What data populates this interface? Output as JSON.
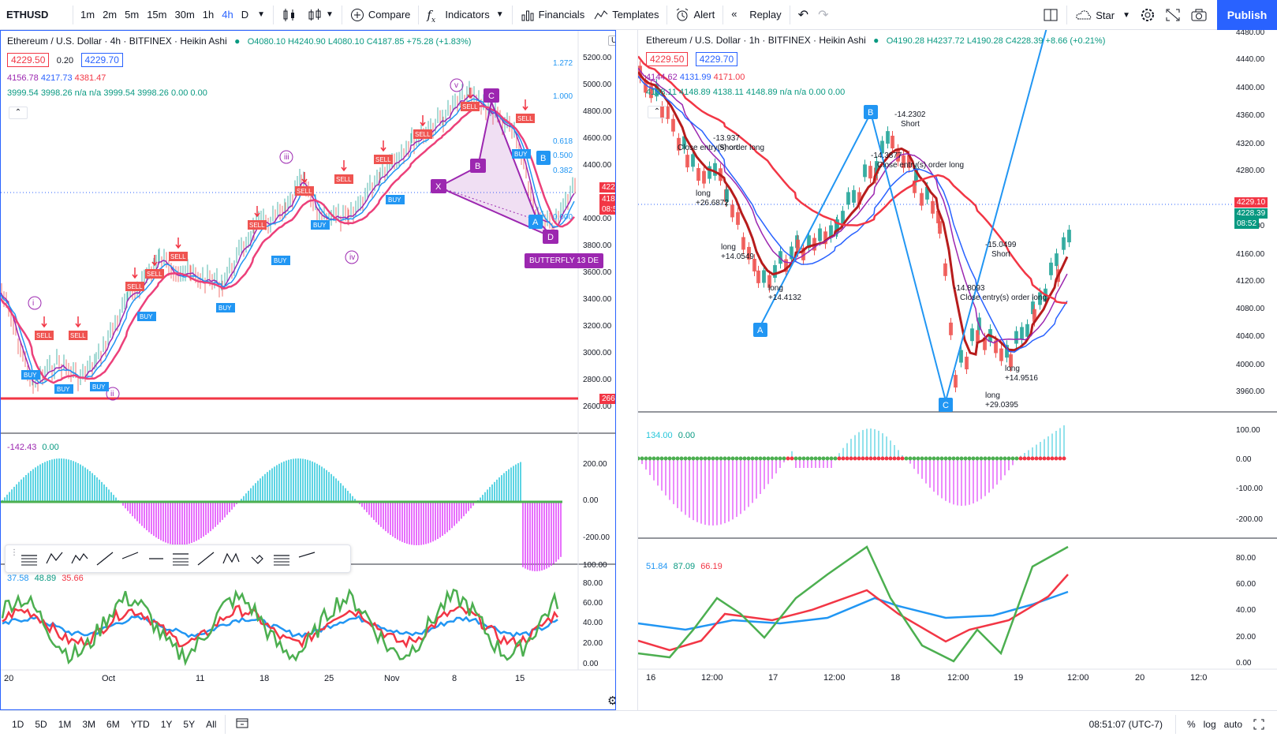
{
  "toolbar": {
    "symbol": "ETHUSD",
    "intervals": [
      "1m",
      "2m",
      "5m",
      "15m",
      "30m",
      "1h",
      "4h",
      "D"
    ],
    "active_interval": "4h",
    "compare": "Compare",
    "indicators": "Indicators",
    "financials": "Financials",
    "templates": "Templates",
    "alert": "Alert",
    "replay": "Replay",
    "star": "Star",
    "publish": "Publish"
  },
  "left_chart": {
    "title": "Ethereum / U.S. Dollar · 4h · BITFINEX · Heikin Ashi",
    "ohlc": "O4080.10 H4240.90 L4080.10 C4187.85 +75.28 (+1.83%)",
    "bid": "4229.50",
    "spread": "0.20",
    "ask": "4229.70",
    "line2": {
      "a": "4156.78",
      "b": "4217.73",
      "c": "4381.47"
    },
    "line3": "3999.54 3998.26 n/a n/a 3999.54 3998.26 0.00 0.00",
    "currency": "USD",
    "price_axis": [
      "5200.00",
      "5000.00",
      "4800.00",
      "4600.00",
      "4400.00",
      "4000.00",
      "3800.00",
      "3600.00",
      "3400.00",
      "3200.00",
      "3000.00",
      "2800.00",
      "2600.00"
    ],
    "last_price": "4229.10",
    "last_price2": "4187.85",
    "countdown": "08:52",
    "hline_price": "2661.15",
    "fib": [
      "1.272",
      "1.000",
      "0.618",
      "0.500",
      "0.382",
      "0.000"
    ],
    "butterfly": "BUTTERFLY 13 DE",
    "waves": [
      "i",
      "ii",
      "iii",
      "iv",
      "v"
    ],
    "osc_legend": {
      "a": "-142.43",
      "b": "0.00"
    },
    "osc_axis": [
      "200.00",
      "0.00",
      "-200.00"
    ],
    "rsi_legend": {
      "a": "37.58",
      "b": "48.89",
      "c": "35.66"
    },
    "rsi_axis": [
      "100.00",
      "80.00",
      "60.00",
      "40.00",
      "20.00",
      "0.00"
    ],
    "time_axis": [
      "20",
      "Oct",
      "11",
      "18",
      "25",
      "Nov",
      "8",
      "15"
    ]
  },
  "right_chart": {
    "title": "Ethereum / U.S. Dollar · 1h · BITFINEX · Heikin Ashi",
    "ohlc": "O4190.28 H4237.72 L4190.28 C4228.39 +8.66 (+0.21%)",
    "bid": "4229.50",
    "ask": "4229.70",
    "line2": {
      "a": "4144.62",
      "b": "4131.99",
      "c": "4171.00"
    },
    "line3": "4138.11 4148.89 4138.11 4148.89 n/a n/a 0.00 0.00",
    "price_axis": [
      "4480.00",
      "4440.00",
      "4400.00",
      "4360.00",
      "4320.00",
      "4280.00",
      "4200.00",
      "4160.00",
      "4120.00",
      "4080.00",
      "4040.00",
      "4000.00",
      "3960.00"
    ],
    "last_price": "4229.10",
    "last_price2": "4228.39",
    "countdown": "08:52",
    "trade_labels": [
      {
        "t1": "-13.937",
        "t2": "Short"
      },
      {
        "t1": "Close entry(s) order long",
        "t2": ""
      },
      {
        "t1": "long",
        "t2": "+26.6872"
      },
      {
        "t1": "long",
        "t2": "+14.0549"
      },
      {
        "t1": "long",
        "t2": "+14.4132"
      },
      {
        "t1": "-14.2302",
        "t2": "Short"
      },
      {
        "t1": "-14.3877",
        "t2": "Close entry(s) order long"
      },
      {
        "t1": "-15.0499",
        "t2": "Short"
      },
      {
        "t1": "-14.8093",
        "t2": "Close entry(s) order long"
      },
      {
        "t1": "long",
        "t2": "+14.9516"
      },
      {
        "t1": "long",
        "t2": "+29.0395"
      }
    ],
    "points": [
      "A",
      "B",
      "C"
    ],
    "osc_legend": {
      "a": "134.00",
      "b": "0.00"
    },
    "osc_axis": [
      "100.00",
      "0.00",
      "-100.00",
      "-200.00"
    ],
    "rsi_legend": {
      "a": "51.84",
      "b": "87.09",
      "c": "66.19"
    },
    "rsi_axis": [
      "80.00",
      "60.00",
      "40.00",
      "20.00",
      "0.00"
    ],
    "time_axis": [
      "16",
      "12:00",
      "17",
      "12:00",
      "18",
      "12:00",
      "19",
      "12:00",
      "20",
      "12:0"
    ]
  },
  "bottombar": {
    "ranges": [
      "1D",
      "5D",
      "1M",
      "3M",
      "6M",
      "YTD",
      "1Y",
      "5Y",
      "All"
    ],
    "time": "08:51:07 (UTC-7)",
    "percent": "%",
    "log": "log",
    "auto": "auto"
  },
  "colors": {
    "accent": "#2962ff",
    "red": "#f23645",
    "green": "#089981",
    "purple": "#9c27b0"
  }
}
